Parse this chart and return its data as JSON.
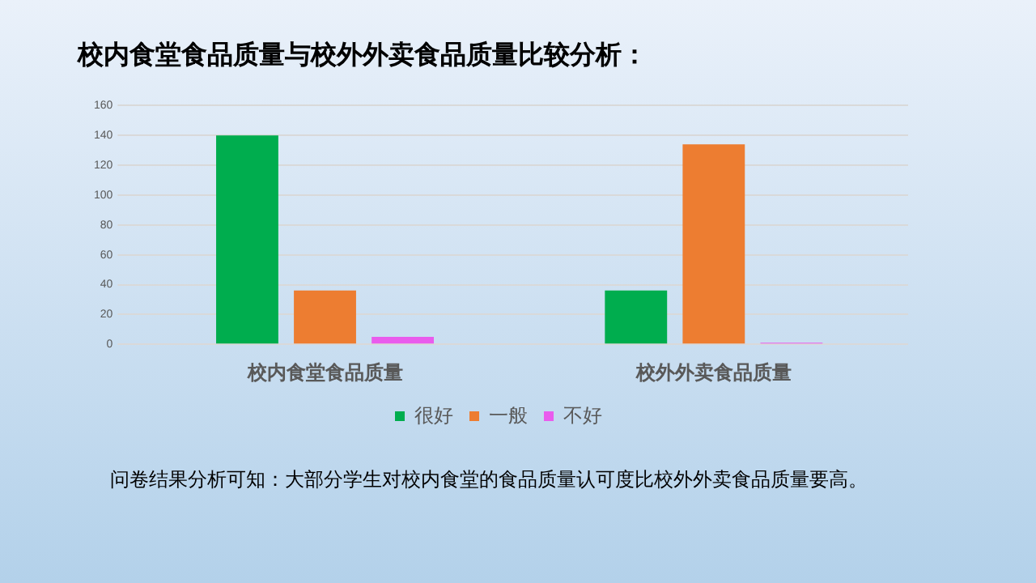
{
  "chart_data": {
    "type": "bar",
    "title": "校内食堂食品质量与校外外卖食品质量比较分析：",
    "categories": [
      "校内食堂食品质量",
      "校外外卖食品质量"
    ],
    "series": [
      {
        "name": "很好",
        "color": "#00ad4e",
        "values": [
          140,
          36
        ]
      },
      {
        "name": "一般",
        "color": "#ed7d31",
        "values": [
          36,
          134
        ]
      },
      {
        "name": "不好",
        "color": "#e95ced",
        "values": [
          5,
          1
        ]
      }
    ],
    "ylim": [
      0,
      160
    ],
    "yticks": [
      0,
      20,
      40,
      60,
      80,
      100,
      120,
      140,
      160
    ],
    "grid": "y",
    "legend": "bottom",
    "annotations": [
      "问卷结果分析可知：大部分学生对校内食堂的食品质量认可度比校外外卖食品质量要高。"
    ]
  }
}
